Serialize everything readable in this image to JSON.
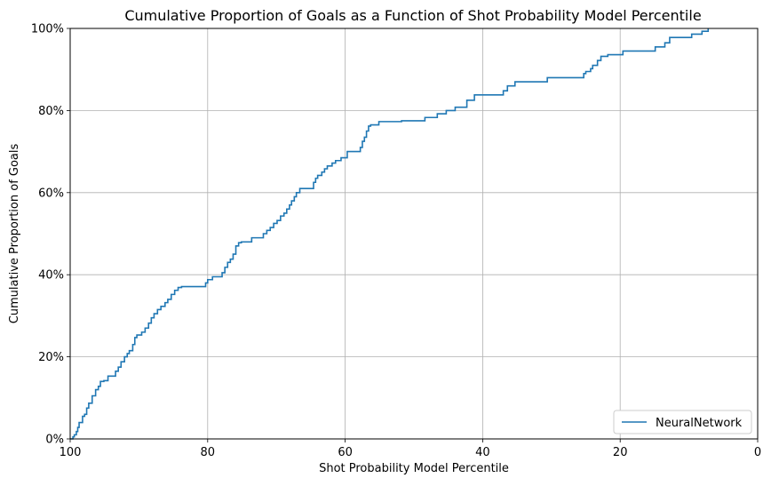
{
  "chart_data": {
    "type": "line",
    "title": "Cumulative Proportion of Goals as a Function of Shot Probability Model Percentile",
    "xlabel": "Shot Probability Model Percentile",
    "ylabel": "Cumulative Proportion of Goals",
    "xlim": [
      100,
      0
    ],
    "ylim": [
      0,
      100
    ],
    "x_reversed": true,
    "xticks": [
      100,
      80,
      60,
      40,
      20,
      0
    ],
    "xtick_labels": [
      "100",
      "80",
      "60",
      "40",
      "20",
      "0"
    ],
    "yticks": [
      0,
      20,
      40,
      60,
      80,
      100
    ],
    "ytick_labels": [
      "0%",
      "20%",
      "40%",
      "60%",
      "80%",
      "100%"
    ],
    "grid": true,
    "legend_position": "bottom-right",
    "line_color": "#1f77b4",
    "series": [
      {
        "name": "NeuralNetwork",
        "x": [
          100,
          99.6,
          99.4,
          99.1,
          98.9,
          98.7,
          98.2,
          97.9,
          97.6,
          97.3,
          96.8,
          96.3,
          95.9,
          95.6,
          95.1,
          94.5,
          93.4,
          93.0,
          92.6,
          92.1,
          91.7,
          91.4,
          90.9,
          90.6,
          90.3,
          89.6,
          89.1,
          88.6,
          88.2,
          87.8,
          87.3,
          86.8,
          86.2,
          85.8,
          85.3,
          84.8,
          84.3,
          83.8,
          80.3,
          80.0,
          79.3,
          77.9,
          77.5,
          77.1,
          76.7,
          76.3,
          75.9,
          75.5,
          75.1,
          73.6,
          71.9,
          71.4,
          70.9,
          70.4,
          69.9,
          69.4,
          68.9,
          68.5,
          68.1,
          67.8,
          67.4,
          67.1,
          66.6,
          64.6,
          64.3,
          64.0,
          63.4,
          63.0,
          62.6,
          61.9,
          61.4,
          60.6,
          59.7,
          57.8,
          57.5,
          57.2,
          56.9,
          56.6,
          56.3,
          55.1,
          51.8,
          48.4,
          46.6,
          45.3,
          44.0,
          42.3,
          41.2,
          37.0,
          36.4,
          35.3,
          30.6,
          25.3,
          25.0,
          24.3,
          24.0,
          23.3,
          22.8,
          21.8,
          19.6,
          14.9,
          13.5,
          12.8,
          9.6,
          8.1,
          7.2
        ],
        "y": [
          0,
          0.5,
          1.0,
          1.8,
          2.8,
          4.0,
          5.5,
          6.0,
          7.5,
          8.7,
          10.5,
          12.0,
          12.8,
          14.0,
          14.2,
          15.3,
          16.5,
          17.5,
          18.8,
          20.0,
          20.8,
          21.5,
          23.0,
          24.7,
          25.3,
          26.0,
          27.0,
          28.2,
          29.5,
          30.5,
          31.5,
          32.3,
          33.2,
          34.0,
          35.2,
          36.2,
          36.9,
          37.1,
          38.0,
          38.8,
          39.5,
          40.5,
          41.8,
          43.0,
          43.8,
          45.0,
          47.0,
          47.8,
          48.0,
          49.0,
          50.0,
          50.8,
          51.5,
          52.5,
          53.2,
          54.3,
          55.0,
          56.0,
          57.0,
          58.0,
          59.0,
          60.0,
          61.0,
          62.5,
          63.5,
          64.2,
          65.0,
          65.8,
          66.5,
          67.2,
          67.8,
          68.5,
          70.0,
          71.0,
          72.5,
          73.5,
          75.0,
          76.2,
          76.5,
          77.3,
          77.5,
          78.3,
          79.2,
          80.0,
          80.8,
          82.5,
          83.8,
          84.8,
          86.0,
          87.0,
          88.0,
          89.0,
          89.5,
          90.2,
          91.0,
          92.2,
          93.2,
          93.6,
          94.5,
          95.5,
          96.5,
          97.8,
          98.6,
          99.3,
          100
        ]
      }
    ]
  }
}
